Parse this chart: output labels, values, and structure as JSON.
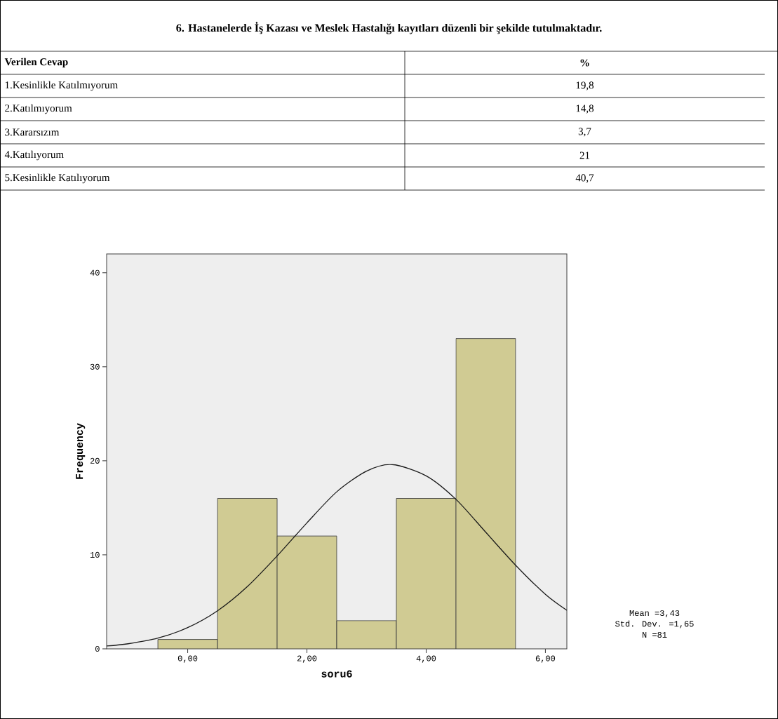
{
  "chart_data": {
    "type": "histogram",
    "title": "6. Hastanelerde İş Kazası ve Meslek Hastalığı kayıtları düzenli bir şekilde tutulmaktadır.",
    "xlabel": "soru6",
    "ylabel": "Frequency",
    "bins": [
      -0.5,
      0.5,
      1.5,
      2.5,
      3.5,
      4.5,
      5.5
    ],
    "values": [
      1,
      16,
      12,
      3,
      16,
      33
    ],
    "color": "#d0cb93",
    "series": [
      {
        "type": "line",
        "color": "#1a1a1a",
        "x": [
          -1.36,
          -1,
          -0.5,
          0,
          0.5,
          1,
          1.5,
          2,
          2.5,
          3,
          3.43,
          4,
          4.5,
          5,
          5.5,
          6,
          6.36
        ],
        "values": [
          0.3,
          0.54,
          1.14,
          2.26,
          4.05,
          6.62,
          9.88,
          13.4,
          16.7,
          18.9,
          19.6,
          18.4,
          15.9,
          12.4,
          8.9,
          5.8,
          4.1
        ]
      }
    ],
    "xlim": [
      -1.36,
      6.36
    ],
    "ylim": [
      0,
      42
    ],
    "xticks": [
      {
        "value": 0,
        "label": "0,00"
      },
      {
        "value": 2,
        "label": "2,00"
      },
      {
        "value": 4,
        "label": "4,00"
      },
      {
        "value": 6,
        "label": "6,00"
      }
    ],
    "yticks": [
      0,
      10,
      20,
      30,
      40
    ],
    "grid": false,
    "annotations": [
      "Verilen Cevap",
      "%",
      "1.Kesinlikle Katılmıyorum",
      "19,8",
      "2.Katılmıyorum",
      "14,8",
      "3.Kararsızım",
      "3,7",
      "4.Katılıyorum",
      "21",
      "5.Kesinlikle Katılıyorum",
      "40,7",
      "Mean =3,43",
      "Std. Dev. =1,65",
      "N =81"
    ]
  }
}
